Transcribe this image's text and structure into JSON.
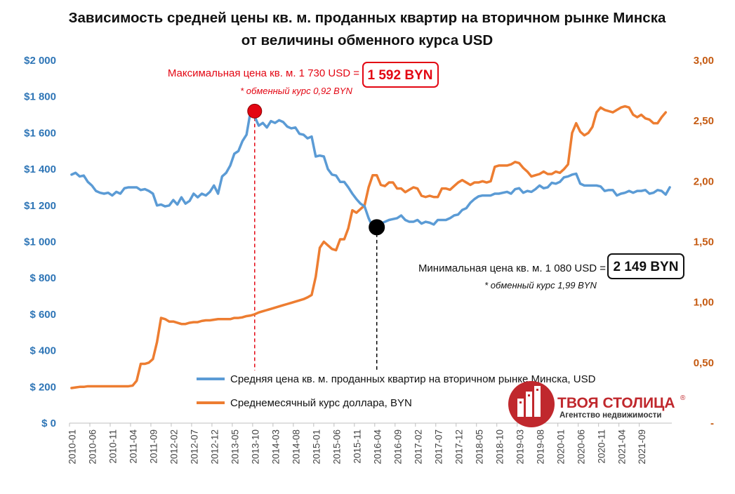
{
  "chart_data": {
    "type": "line",
    "title_line1": "Зависимость средней цены кв. м. проданных квартир на вторичном рынке Минска",
    "title_line2": "от величины обменного курса USD",
    "y_left": {
      "ylim": [
        0,
        2000
      ],
      "tick_labels": [
        "$ 0",
        "$ 200",
        "$ 400",
        "$ 600",
        "$ 800",
        "$1 000",
        "$1 200",
        "$1 400",
        "$1 600",
        "$1 800",
        "$2 000"
      ]
    },
    "y_right": {
      "ylim": [
        0,
        3
      ],
      "tick_labels": [
        "-",
        "0,50",
        "1,00",
        "1,50",
        "2,00",
        "2,50",
        "3,00"
      ]
    },
    "x_tick_labels": [
      "2010-01",
      "2010-06",
      "2010-11",
      "2011-04",
      "2011-09",
      "2012-02",
      "2012-07",
      "2012-12",
      "2013-05",
      "2013-10",
      "2014-03",
      "2014-08",
      "2015-01",
      "2015-06",
      "2015-11",
      "2016-04",
      "2016-09",
      "2017-02",
      "2017-07",
      "2017-12",
      "2018-05",
      "2018-10",
      "2019-03",
      "2019-08",
      "2020-01",
      "2020-06",
      "2020-11",
      "2021-04",
      "2021-09"
    ],
    "x_start": "2010-01",
    "series": [
      {
        "name": "Средняя цена кв. м. проданных квартир на вторичном рынке Минска, USD",
        "color": "#5B9BD5",
        "axis": "left",
        "values": [
          1370,
          1380,
          1360,
          1365,
          1330,
          1310,
          1280,
          1270,
          1265,
          1270,
          1255,
          1275,
          1265,
          1295,
          1300,
          1300,
          1300,
          1285,
          1290,
          1280,
          1265,
          1200,
          1205,
          1195,
          1200,
          1230,
          1205,
          1245,
          1210,
          1225,
          1265,
          1245,
          1265,
          1255,
          1275,
          1310,
          1265,
          1360,
          1380,
          1420,
          1485,
          1500,
          1555,
          1590,
          1720,
          1690,
          1640,
          1655,
          1630,
          1665,
          1655,
          1670,
          1660,
          1635,
          1625,
          1630,
          1595,
          1590,
          1570,
          1580,
          1470,
          1475,
          1470,
          1400,
          1370,
          1365,
          1330,
          1330,
          1300,
          1265,
          1235,
          1210,
          1195,
          1130,
          1080,
          1090,
          1100,
          1110,
          1120,
          1125,
          1130,
          1145,
          1120,
          1110,
          1110,
          1120,
          1100,
          1110,
          1105,
          1095,
          1120,
          1120,
          1120,
          1130,
          1145,
          1150,
          1175,
          1185,
          1215,
          1235,
          1250,
          1255,
          1255,
          1255,
          1265,
          1265,
          1270,
          1275,
          1265,
          1290,
          1295,
          1270,
          1280,
          1275,
          1290,
          1310,
          1295,
          1300,
          1325,
          1320,
          1330,
          1355,
          1360,
          1370,
          1375,
          1320,
          1310,
          1310,
          1310,
          1310,
          1305,
          1280,
          1285,
          1285,
          1255,
          1265,
          1270,
          1280,
          1270,
          1280,
          1280,
          1285,
          1265,
          1270,
          1285,
          1280,
          1260,
          1300
        ]
      },
      {
        "name": "Среднемесячный курс доллара, BYN",
        "color": "#ED7D31",
        "axis": "right",
        "values": [
          0.29,
          0.295,
          0.3,
          0.3,
          0.305,
          0.305,
          0.305,
          0.305,
          0.305,
          0.305,
          0.305,
          0.305,
          0.305,
          0.305,
          0.305,
          0.31,
          0.35,
          0.49,
          0.49,
          0.5,
          0.53,
          0.67,
          0.87,
          0.86,
          0.84,
          0.84,
          0.83,
          0.82,
          0.82,
          0.83,
          0.835,
          0.835,
          0.845,
          0.85,
          0.85,
          0.855,
          0.86,
          0.86,
          0.86,
          0.86,
          0.87,
          0.87,
          0.875,
          0.885,
          0.89,
          0.9,
          0.915,
          0.925,
          0.935,
          0.945,
          0.955,
          0.965,
          0.975,
          0.985,
          0.995,
          1.005,
          1.015,
          1.025,
          1.04,
          1.06,
          1.21,
          1.45,
          1.5,
          1.47,
          1.44,
          1.43,
          1.52,
          1.52,
          1.61,
          1.76,
          1.74,
          1.77,
          1.8,
          1.95,
          2.05,
          2.05,
          1.97,
          1.96,
          1.99,
          1.99,
          1.94,
          1.94,
          1.91,
          1.93,
          1.95,
          1.94,
          1.88,
          1.87,
          1.88,
          1.87,
          1.87,
          1.94,
          1.94,
          1.93,
          1.96,
          1.99,
          2.01,
          1.99,
          1.97,
          1.99,
          1.99,
          2.0,
          1.99,
          2.0,
          2.12,
          2.13,
          2.13,
          2.13,
          2.14,
          2.16,
          2.15,
          2.11,
          2.08,
          2.04,
          2.05,
          2.06,
          2.08,
          2.06,
          2.06,
          2.08,
          2.07,
          2.1,
          2.14,
          2.4,
          2.48,
          2.41,
          2.38,
          2.4,
          2.45,
          2.57,
          2.61,
          2.59,
          2.58,
          2.57,
          2.59,
          2.61,
          2.62,
          2.61,
          2.55,
          2.53,
          2.55,
          2.52,
          2.51,
          2.48,
          2.48,
          2.53,
          2.57
        ]
      }
    ],
    "annotations": {
      "max": {
        "text": "Максимальная цена кв. м. 1 730 USD =",
        "value_box": "1 592 BYN",
        "note": "* обменный курс 0,92 BYN",
        "x": "2013-10",
        "y": 1720,
        "color": "#E30613"
      },
      "min": {
        "text": "Минимальная цена кв. м. 1 080 USD =",
        "value_box": "2 149 BYN",
        "note": "* обменный курс 1,99 BYN",
        "x": "2016-04",
        "y": 1080,
        "color": "#000000"
      }
    },
    "legend_placement": "bottom-center-inside",
    "grid": false
  },
  "logo": {
    "title": "ТВОЯ СТОЛИЦА",
    "registered": "®",
    "subtitle": "Агентство недвижимости",
    "color": "#C0282D"
  }
}
